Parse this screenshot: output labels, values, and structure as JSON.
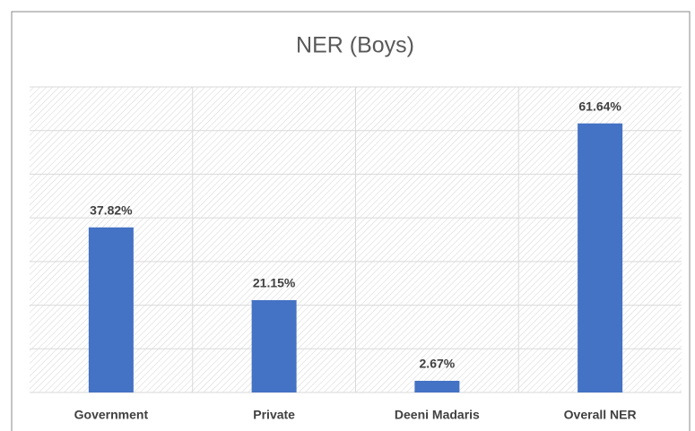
{
  "chart_data": {
    "type": "bar",
    "title": "NER (Boys)",
    "categories": [
      "Government",
      "Private",
      "Deeni Madaris",
      "Overall NER"
    ],
    "values": [
      37.82,
      21.15,
      2.67,
      61.64
    ],
    "value_labels": [
      "37.82%",
      "21.15%",
      "2.67%",
      "61.64%"
    ],
    "color": "#4472c4",
    "ylim": [
      0,
      70
    ],
    "yticks": [
      0,
      10,
      20,
      30,
      40,
      50,
      60,
      70
    ],
    "grid": true
  }
}
